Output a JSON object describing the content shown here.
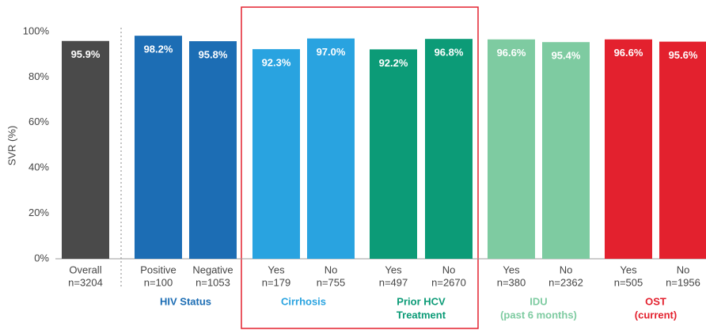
{
  "chart_data": {
    "type": "bar",
    "y_label": "SVR (%)",
    "ylim": [
      0,
      100
    ],
    "yticks": [
      {
        "value": 0,
        "label": "0%"
      },
      {
        "value": 20,
        "label": "20%"
      },
      {
        "value": 40,
        "label": "40%"
      },
      {
        "value": 60,
        "label": "60%"
      },
      {
        "value": 80,
        "label": "80%"
      },
      {
        "value": 100,
        "label": "100%"
      }
    ],
    "groups": [
      {
        "color": "#4a4a4a",
        "categories": [
          "Overall"
        ],
        "n": [
          "n=3204"
        ],
        "values": [
          95.9
        ],
        "value_labels": [
          "95.9%"
        ]
      },
      {
        "label": [
          "HIV Status"
        ],
        "color": "#1c6db4",
        "categories": [
          "Positive",
          "Negative"
        ],
        "n": [
          "n=100",
          "n=1053"
        ],
        "values": [
          98.2,
          95.8
        ],
        "value_labels": [
          "98.2%",
          "95.8%"
        ]
      },
      {
        "label": [
          "Cirrhosis"
        ],
        "color": "#29a3e0",
        "categories": [
          "Yes",
          "No"
        ],
        "n": [
          "n=179",
          "n=755"
        ],
        "values": [
          92.3,
          97.0
        ],
        "value_labels": [
          "92.3%",
          "97.0%"
        ]
      },
      {
        "label": [
          "Prior HCV",
          "Treatment"
        ],
        "color": "#0c9b77",
        "categories": [
          "Yes",
          "No"
        ],
        "n": [
          "n=497",
          "n=2670"
        ],
        "values": [
          92.2,
          96.8
        ],
        "value_labels": [
          "92.2%",
          "96.8%"
        ]
      },
      {
        "label": [
          "IDU",
          "(past 6 months)"
        ],
        "color": "#7ecba1",
        "categories": [
          "Yes",
          "No"
        ],
        "n": [
          "n=380",
          "n=2362"
        ],
        "values": [
          96.6,
          95.4
        ],
        "value_labels": [
          "96.6%",
          "95.4%"
        ]
      },
      {
        "label": [
          "OST",
          "(current)"
        ],
        "color": "#e3212e",
        "categories": [
          "Yes",
          "No"
        ],
        "n": [
          "n=505",
          "n=1956"
        ],
        "values": [
          96.6,
          95.6
        ],
        "value_labels": [
          "96.6%",
          "95.6%"
        ]
      }
    ]
  }
}
